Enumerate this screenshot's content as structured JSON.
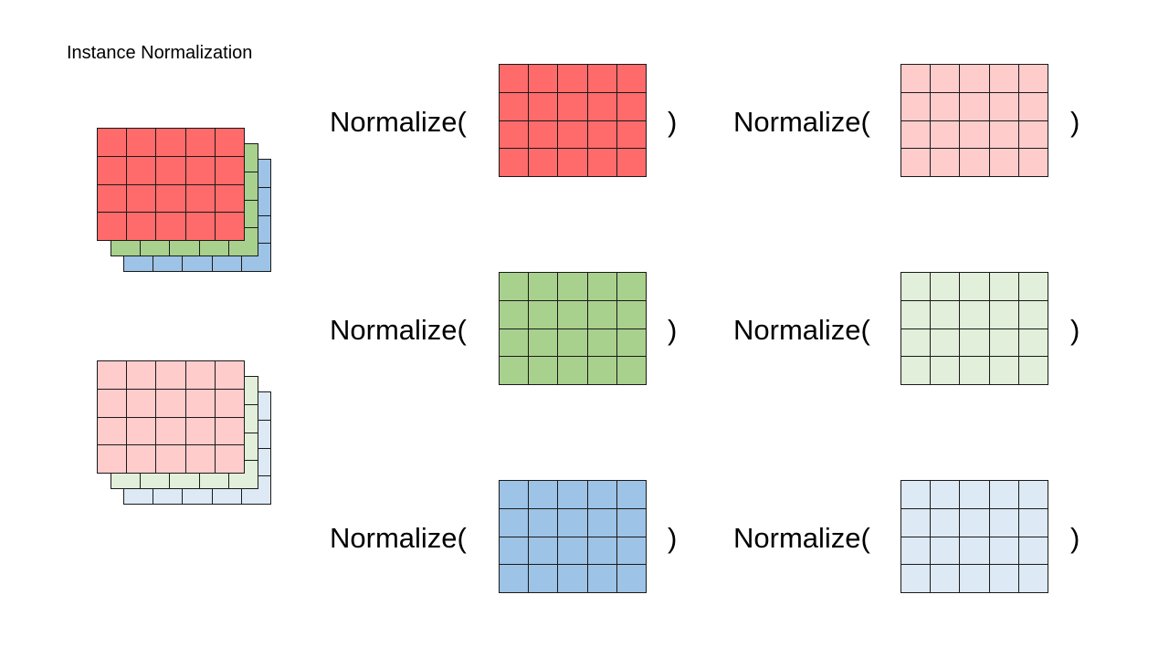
{
  "title": "Instance Normalization",
  "colors": {
    "red": "#ff6b6b",
    "green": "#a9d18e",
    "blue": "#9dc3e6",
    "light_red": "#ffcccc",
    "light_green": "#e2efda",
    "light_blue": "#dde9f5",
    "grid_line": "#1a1a1a"
  },
  "normalize_open": "Normalize(",
  "normalize_close": ")",
  "stacks": [
    {
      "name": "original-stack",
      "colors": [
        "blue",
        "green",
        "red"
      ]
    },
    {
      "name": "normalized-stack",
      "colors": [
        "light_blue",
        "light_green",
        "light_red"
      ]
    }
  ],
  "rows": [
    {
      "channel": "red",
      "input_color": "red",
      "output_color": "light_red"
    },
    {
      "channel": "green",
      "input_color": "green",
      "output_color": "light_green"
    },
    {
      "channel": "blue",
      "input_color": "blue",
      "output_color": "light_blue"
    }
  ]
}
